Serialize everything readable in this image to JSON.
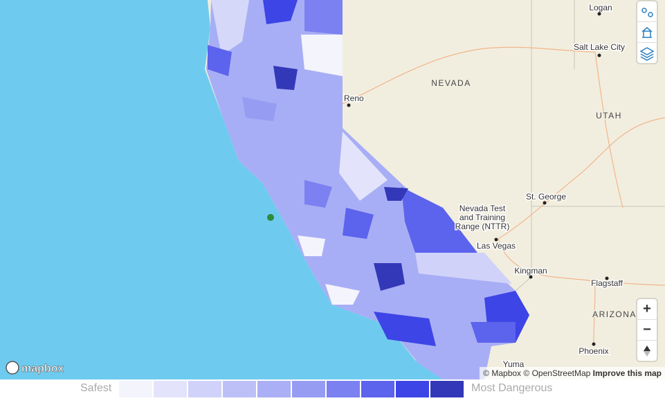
{
  "places": {
    "logan": "Logan",
    "salt_lake_city": "Salt Lake City",
    "nevada": "NEVADA",
    "utah": "UTAH",
    "reno": "Reno",
    "st_george": "St. George",
    "nttr": [
      "Nevada Test",
      "and Training",
      "Range (NTTR)"
    ],
    "las_vegas": "Las Vegas",
    "kingman": "Kingman",
    "flagstaff": "Flagstaff",
    "arizona": "ARIZONA",
    "phoenix": "Phoenix",
    "yuma": "Yuma"
  },
  "controls": {
    "zoom_in": "+",
    "zoom_out": "−"
  },
  "logo": "mapbox",
  "attribution": {
    "mapbox": "© Mapbox",
    "osm": "© OpenStreetMap",
    "improve": "Improve this map"
  },
  "legend": {
    "low": "Safest",
    "high": "Most Dangerous",
    "colors": [
      "#f4f4fd",
      "#e3e4fb",
      "#d0d2f9",
      "#bdc0f7",
      "#abaff5",
      "#979cf3",
      "#7b81f0",
      "#5c63ec",
      "#3d45e6",
      "#3338b8"
    ]
  }
}
